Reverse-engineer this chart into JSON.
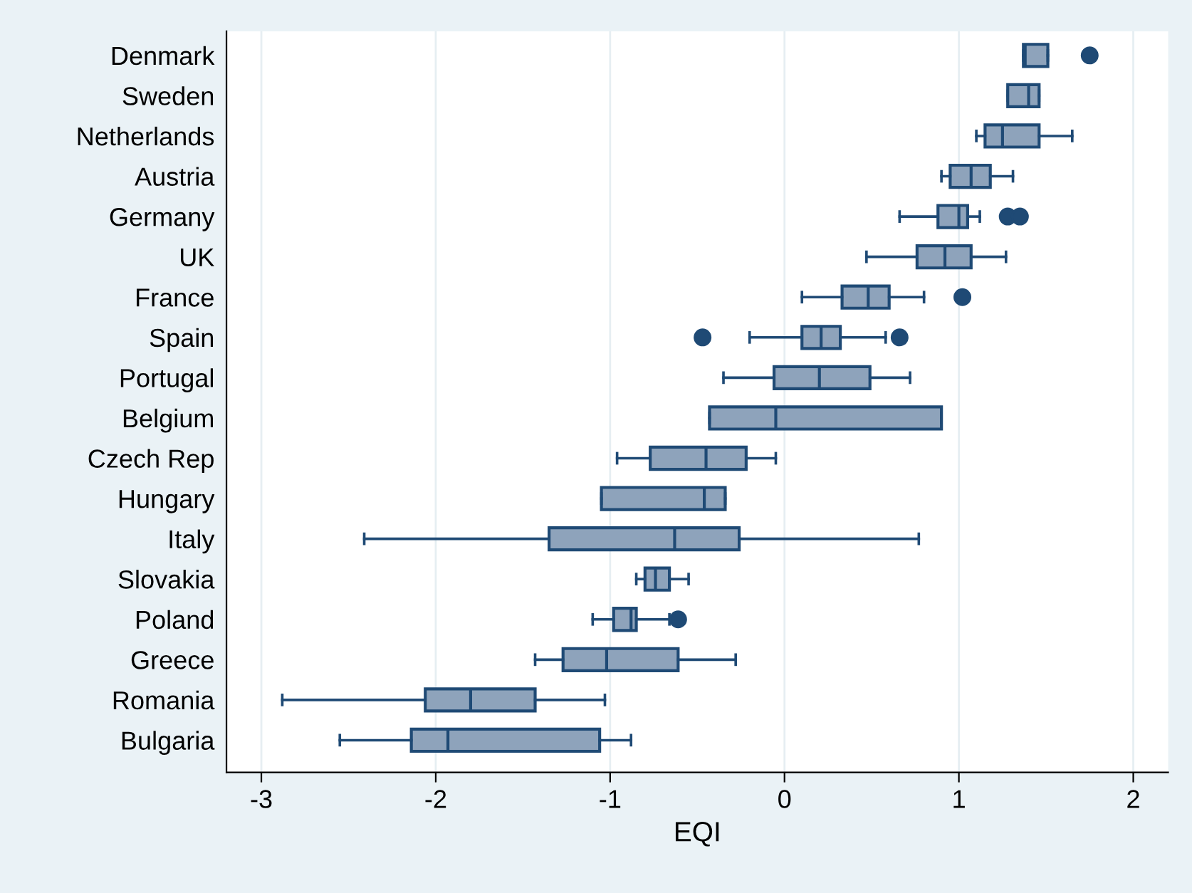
{
  "chart_data": {
    "type": "box",
    "orientation": "horizontal",
    "xlabel": "EQI",
    "categories": [
      "Denmark",
      "Sweden",
      "Netherlands",
      "Austria",
      "Germany",
      "UK",
      "France",
      "Spain",
      "Portugal",
      "Belgium",
      "Czech Rep",
      "Hungary",
      "Italy",
      "Slovakia",
      "Poland",
      "Greece",
      "Romania",
      "Bulgaria"
    ],
    "boxes": [
      {
        "low": 1.37,
        "q1": 1.37,
        "median": 1.38,
        "q3": 1.51,
        "high": 1.51,
        "outliers": [
          1.75
        ]
      },
      {
        "low": 1.28,
        "q1": 1.28,
        "median": 1.4,
        "q3": 1.46,
        "high": 1.46
      },
      {
        "low": 1.1,
        "q1": 1.15,
        "median": 1.25,
        "q3": 1.46,
        "high": 1.65
      },
      {
        "low": 0.9,
        "q1": 0.95,
        "median": 1.07,
        "q3": 1.18,
        "high": 1.31
      },
      {
        "low": 0.66,
        "q1": 0.88,
        "median": 1.0,
        "q3": 1.05,
        "high": 1.12,
        "outliers": [
          1.28,
          1.35
        ]
      },
      {
        "low": 0.47,
        "q1": 0.76,
        "median": 0.92,
        "q3": 1.07,
        "high": 1.27
      },
      {
        "low": 0.1,
        "q1": 0.33,
        "median": 0.48,
        "q3": 0.6,
        "high": 0.8,
        "outliers": [
          1.02
        ]
      },
      {
        "low": -0.2,
        "q1": 0.1,
        "median": 0.21,
        "q3": 0.32,
        "high": 0.58,
        "outliers": [
          -0.47,
          0.66
        ]
      },
      {
        "low": -0.35,
        "q1": -0.06,
        "median": 0.2,
        "q3": 0.49,
        "high": 0.72
      },
      {
        "low": -0.43,
        "q1": -0.43,
        "median": -0.05,
        "q3": 0.9,
        "high": 0.9
      },
      {
        "low": -0.96,
        "q1": -0.77,
        "median": -0.45,
        "q3": -0.22,
        "high": -0.05
      },
      {
        "low": -1.05,
        "q1": -1.05,
        "median": -0.46,
        "q3": -0.34,
        "high": -0.34
      },
      {
        "low": -2.41,
        "q1": -1.35,
        "median": -0.63,
        "q3": -0.26,
        "high": 0.77
      },
      {
        "low": -0.85,
        "q1": -0.8,
        "median": -0.74,
        "q3": -0.66,
        "high": -0.55
      },
      {
        "low": -1.1,
        "q1": -0.98,
        "median": -0.88,
        "q3": -0.85,
        "high": -0.66,
        "outliers": [
          -0.61
        ]
      },
      {
        "low": -1.43,
        "q1": -1.27,
        "median": -1.02,
        "q3": -0.61,
        "high": -0.28
      },
      {
        "low": -2.88,
        "q1": -2.06,
        "median": -1.8,
        "q3": -1.43,
        "high": -1.03
      },
      {
        "low": -2.55,
        "q1": -2.14,
        "median": -1.93,
        "q3": -1.06,
        "high": -0.88
      }
    ],
    "color": "#8ea3bb",
    "xlim": [
      -3.2,
      2.2
    ],
    "xticks": [
      -3,
      -2,
      -1,
      0,
      1,
      2
    ],
    "grid": "x",
    "legend": false
  }
}
